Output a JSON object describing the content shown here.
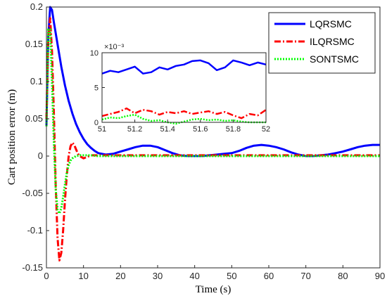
{
  "chart_data": [
    {
      "type": "line",
      "xlabel": "Time (s)",
      "ylabel": "Cart position error (m)",
      "xlim": [
        0,
        90
      ],
      "ylim": [
        -0.15,
        0.2
      ],
      "xticks": [
        "0",
        "10",
        "20",
        "30",
        "40",
        "50",
        "60",
        "70",
        "80",
        "90"
      ],
      "yticks": [
        "-0.15",
        "-0.1",
        "-0.05",
        "0",
        "0.05",
        "0.1",
        "0.15",
        "0.2"
      ],
      "grid": false,
      "legend_position": "top-right",
      "series": [
        {
          "name": "LQRSMC",
          "color": "#0000ff",
          "style": "solid",
          "x": [
            0,
            0.5,
            1,
            1.5,
            2,
            3,
            4,
            5,
            6,
            7,
            8,
            9,
            10,
            11,
            12,
            13,
            14,
            15,
            16,
            18,
            20,
            22,
            24,
            26,
            28,
            30,
            32,
            34,
            36,
            38,
            40,
            42,
            44,
            46,
            48,
            50,
            52,
            54,
            56,
            58,
            60,
            62,
            64,
            66,
            68,
            70,
            72,
            74,
            76,
            78,
            80,
            82,
            84,
            86,
            88,
            90
          ],
          "y": [
            0.04,
            0.16,
            0.2,
            0.196,
            0.18,
            0.15,
            0.12,
            0.095,
            0.074,
            0.057,
            0.043,
            0.032,
            0.023,
            0.016,
            0.011,
            0.007,
            0.004,
            0.003,
            0.002,
            0.003,
            0.006,
            0.009,
            0.012,
            0.014,
            0.014,
            0.012,
            0.008,
            0.004,
            0.001,
            0.0,
            0.0,
            0.0,
            0.001,
            0.002,
            0.003,
            0.004,
            0.007,
            0.011,
            0.014,
            0.015,
            0.014,
            0.012,
            0.009,
            0.005,
            0.002,
            0.0,
            0.0,
            0.001,
            0.002,
            0.004,
            0.006,
            0.009,
            0.012,
            0.014,
            0.015,
            0.015
          ]
        },
        {
          "name": "ILQRSMC",
          "color": "#ff0000",
          "style": "dashdot",
          "x": [
            0,
            0.5,
            1,
            1.5,
            2,
            2.5,
            3,
            3.5,
            4,
            4.5,
            5,
            5.5,
            6,
            6.5,
            7,
            7.5,
            8,
            8.5,
            9,
            10,
            11,
            12,
            14,
            16,
            20,
            30,
            40,
            50,
            60,
            70,
            80,
            90
          ],
          "y": [
            0.05,
            0.16,
            0.185,
            0.14,
            0.06,
            -0.04,
            -0.11,
            -0.14,
            -0.13,
            -0.1,
            -0.06,
            -0.025,
            0.0,
            0.013,
            0.018,
            0.015,
            0.009,
            0.003,
            0.0,
            -0.003,
            -0.001,
            0.001,
            0.001,
            0.001,
            0.001,
            0.001,
            0.001,
            0.001,
            0.001,
            0.001,
            0.001,
            0.001
          ]
        },
        {
          "name": "SONTSMC",
          "color": "#00ff00",
          "style": "dotted",
          "x": [
            0,
            0.5,
            1,
            1.5,
            2,
            2.5,
            3,
            3.5,
            4,
            4.5,
            5,
            5.5,
            6,
            6.5,
            7,
            8,
            9,
            10,
            12,
            14,
            20,
            30,
            40,
            50,
            60,
            70,
            80,
            90
          ],
          "y": [
            0.04,
            0.17,
            0.17,
            0.1,
            0.02,
            -0.045,
            -0.072,
            -0.077,
            -0.07,
            -0.055,
            -0.038,
            -0.022,
            -0.012,
            -0.006,
            -0.003,
            0.0,
            0.001,
            0.001,
            0.001,
            0.0,
            0.0,
            0.0,
            0.0,
            0.0,
            0.0,
            0.0,
            0.0,
            0.0
          ]
        }
      ]
    },
    {
      "type": "line",
      "inset": true,
      "xlim": [
        51,
        52
      ],
      "ylim": [
        0,
        10
      ],
      "exponent_label": "×10⁻³",
      "xticks": [
        "51",
        "51.2",
        "51.4",
        "51.6",
        "51.8",
        "52"
      ],
      "yticks": [
        "0",
        "5",
        "10"
      ],
      "series": [
        {
          "name": "LQRSMC",
          "color": "#0000ff",
          "style": "solid",
          "x": [
            51,
            51.05,
            51.1,
            51.15,
            51.2,
            51.25,
            51.3,
            51.35,
            51.4,
            51.45,
            51.5,
            51.55,
            51.6,
            51.65,
            51.7,
            51.75,
            51.8,
            51.85,
            51.9,
            51.95,
            52
          ],
          "y": [
            7.0,
            7.4,
            7.2,
            7.6,
            8.0,
            7.0,
            7.2,
            7.9,
            7.6,
            8.1,
            8.3,
            8.8,
            8.9,
            8.5,
            7.5,
            7.9,
            8.9,
            8.6,
            8.2,
            8.6,
            8.3
          ]
        },
        {
          "name": "ILQRSMC",
          "color": "#ff0000",
          "style": "dashdot",
          "x": [
            51,
            51.05,
            51.1,
            51.15,
            51.2,
            51.25,
            51.3,
            51.35,
            51.4,
            51.45,
            51.5,
            51.55,
            51.6,
            51.65,
            51.7,
            51.75,
            51.8,
            51.85,
            51.9,
            51.95,
            52
          ],
          "y": [
            0.9,
            1.2,
            1.5,
            2.0,
            1.3,
            1.8,
            1.6,
            1.1,
            1.5,
            1.3,
            1.6,
            1.2,
            1.4,
            1.6,
            1.2,
            1.5,
            1.0,
            0.6,
            1.2,
            1.0,
            1.8
          ]
        },
        {
          "name": "SONTSMC",
          "color": "#00ff00",
          "style": "dotted",
          "x": [
            51,
            51.05,
            51.1,
            51.15,
            51.2,
            51.25,
            51.3,
            51.35,
            51.4,
            51.45,
            51.5,
            51.55,
            51.6,
            51.65,
            51.7,
            51.75,
            51.8,
            51.85,
            51.9,
            51.95,
            52
          ],
          "y": [
            0.4,
            0.7,
            0.6,
            0.9,
            1.1,
            0.5,
            0.2,
            0.3,
            0.0,
            -0.2,
            0.1,
            0.4,
            0.5,
            0.3,
            0.4,
            0.2,
            0.3,
            0.1,
            0.0,
            0.0,
            0.0
          ]
        }
      ]
    }
  ]
}
